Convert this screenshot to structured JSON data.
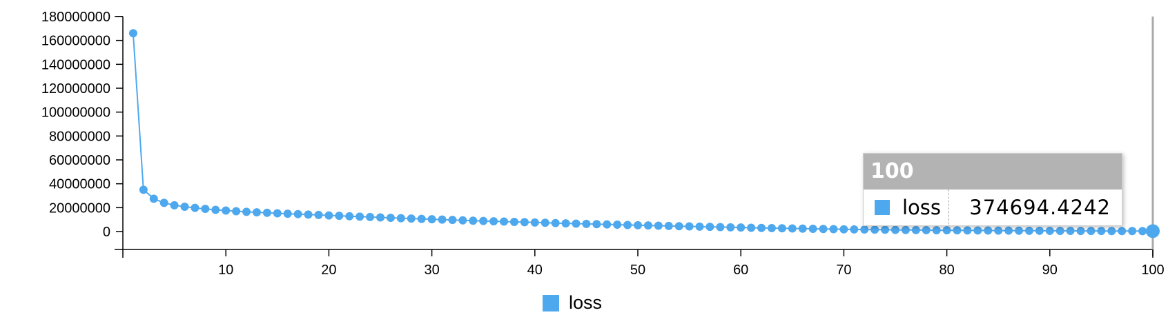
{
  "chart_data": {
    "type": "line",
    "title": "",
    "xlabel": "",
    "ylabel": "",
    "xlim": [
      0,
      100
    ],
    "ylim": [
      -15000000,
      180000000
    ],
    "x_ticks": [
      10,
      20,
      30,
      40,
      50,
      60,
      70,
      80,
      90,
      100
    ],
    "y_ticks": [
      0,
      20000000,
      40000000,
      60000000,
      80000000,
      100000000,
      120000000,
      140000000,
      160000000,
      180000000
    ],
    "x_tick_labels": [
      "10",
      "20",
      "30",
      "40",
      "50",
      "60",
      "70",
      "80",
      "90",
      "100"
    ],
    "y_tick_labels": [
      "0",
      "20000000",
      "40000000",
      "60000000",
      "80000000",
      "100000000",
      "120000000",
      "140000000",
      "160000000",
      "180000000"
    ],
    "series": [
      {
        "name": "loss",
        "color": "#4ea8ee",
        "x": [
          1,
          2,
          3,
          4,
          5,
          6,
          7,
          8,
          9,
          10,
          11,
          12,
          13,
          14,
          15,
          16,
          17,
          18,
          19,
          20,
          21,
          22,
          23,
          24,
          25,
          26,
          27,
          28,
          29,
          30,
          31,
          32,
          33,
          34,
          35,
          36,
          37,
          38,
          39,
          40,
          41,
          42,
          43,
          44,
          45,
          46,
          47,
          48,
          49,
          50,
          51,
          52,
          53,
          54,
          55,
          56,
          57,
          58,
          59,
          60,
          61,
          62,
          63,
          64,
          65,
          66,
          67,
          68,
          69,
          70,
          71,
          72,
          73,
          74,
          75,
          76,
          77,
          78,
          79,
          80,
          81,
          82,
          83,
          84,
          85,
          86,
          87,
          88,
          89,
          90,
          91,
          92,
          93,
          94,
          95,
          96,
          97,
          98,
          99,
          100
        ],
        "values": [
          166000000,
          35000000,
          27500000,
          24000000,
          22000000,
          20800000,
          19800000,
          19000000,
          18200000,
          17600000,
          17000000,
          16500000,
          16100000,
          15700000,
          15300000,
          14900000,
          14600000,
          14200000,
          13900000,
          13500000,
          13200000,
          12800000,
          12500000,
          12200000,
          11800000,
          11500000,
          11200000,
          10900000,
          10600000,
          10300000,
          10000000,
          9700000,
          9400000,
          9100000,
          8850000,
          8600000,
          8350000,
          8100000,
          7850000,
          7600000,
          7350000,
          7100000,
          6850000,
          6650000,
          6400000,
          6200000,
          5950000,
          5750000,
          5500000,
          5300000,
          5100000,
          4900000,
          4700000,
          4500000,
          4300000,
          4100000,
          3950000,
          3750000,
          3550000,
          3400000,
          3200000,
          3050000,
          2900000,
          2750000,
          2600000,
          2450000,
          2300000,
          2150000,
          2050000,
          1900000,
          1800000,
          1700000,
          1600000,
          1500000,
          1400000,
          1300000,
          1250000,
          1150000,
          1100000,
          1050000,
          1000000,
          950000,
          900000,
          850000,
          800000,
          760000,
          720000,
          680000,
          640000,
          610000,
          580000,
          550000,
          520000,
          500000,
          470000,
          450000,
          430000,
          410000,
          390000,
          374694.4242
        ]
      }
    ],
    "highlight": {
      "x": 100,
      "value": 374694.4242
    }
  },
  "tooltip": {
    "header": "100",
    "series_name": "loss",
    "value": "374694.4242"
  },
  "legend": {
    "label": "loss",
    "color": "#4ea8ee"
  }
}
